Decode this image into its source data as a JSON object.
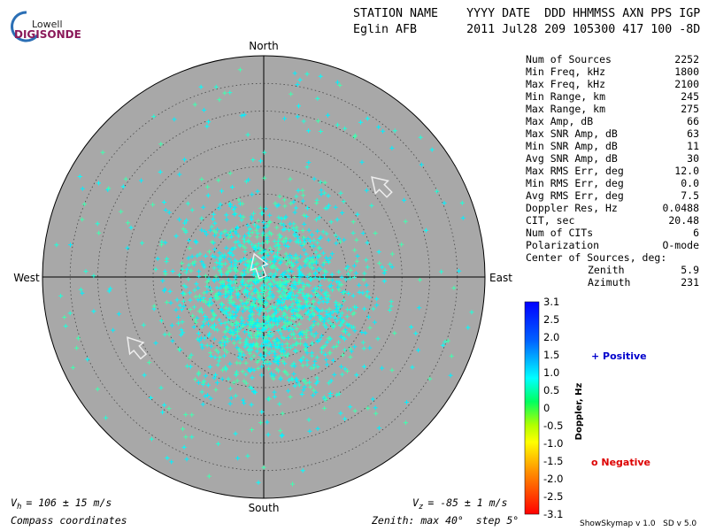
{
  "logo": {
    "top": "Lowell",
    "bottom": "DIGISONDE"
  },
  "header": {
    "line1": "STATION NAME    YYYY DATE  DDD HHMMSS AXN PPS IGP",
    "line2": "Eglin AFB       2011 Jul28 209 105300 417 100 -8D"
  },
  "compass": {
    "north": "North",
    "south": "South",
    "west": "West",
    "east": "East"
  },
  "table": {
    "rows": [
      [
        "Num of Sources",
        "2252"
      ],
      [
        "Min Freq, kHz",
        "1800"
      ],
      [
        "Max Freq, kHz",
        "2100"
      ],
      [
        "Min Range, km",
        "245"
      ],
      [
        "Max Range, km",
        "275"
      ],
      [
        "Max Amp, dB",
        "66"
      ],
      [
        "Max SNR Amp, dB",
        "63"
      ],
      [
        "Min SNR Amp, dB",
        "11"
      ],
      [
        "Avg SNR Amp, dB",
        "30"
      ],
      [
        "Max RMS Err, deg",
        "12.0"
      ],
      [
        "Min RMS Err, deg",
        "0.0"
      ],
      [
        "Avg RMS Err, deg",
        "7.5"
      ],
      [
        "Doppler Res, Hz",
        "0.0488"
      ],
      [
        "CIT, sec",
        "20.48"
      ],
      [
        "Num of CITs",
        "6"
      ],
      [
        "Polarization",
        "O-mode"
      ]
    ],
    "center_title": "Center of Sources, deg:",
    "center_rows": [
      [
        "Zenith",
        "5.9"
      ],
      [
        "Azimuth",
        "231"
      ]
    ]
  },
  "colorbar": {
    "title": "Doppler, Hz",
    "labels": [
      "3.1",
      "2.5",
      "2.0",
      "1.5",
      "1.0",
      "0.5",
      "0",
      "-0.5",
      "-1.0",
      "-1.5",
      "-2.0",
      "-2.5",
      "-3.1"
    ]
  },
  "legend": {
    "positive": "+ Positive",
    "negative": "o Negative"
  },
  "footer": {
    "vh_symbol": "V",
    "vh_sub": "h",
    "vh_text": "= 106 ± 15 m/s",
    "vz_symbol": "V",
    "vz_sub": "z",
    "vz_text": "= -85 ± 1 m/s",
    "coords": "Compass coordinates",
    "zenith": "Zenith: max 40°  step 5°",
    "version": "ShowSkymap v 1.0   SD v 5.0"
  }
}
